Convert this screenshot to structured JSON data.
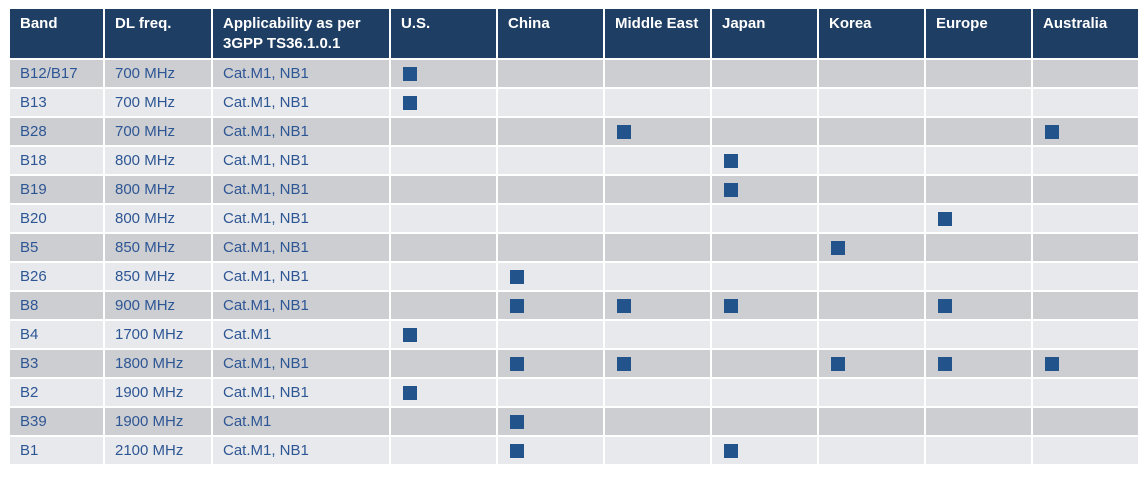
{
  "table": {
    "columns": [
      {
        "key": "band",
        "label": "Band"
      },
      {
        "key": "dl_freq",
        "label": "DL freq."
      },
      {
        "key": "applicability",
        "label": "Applicability as per 3GPP TS36.1.0.1"
      },
      {
        "key": "us",
        "label": "U.S."
      },
      {
        "key": "china",
        "label": "China"
      },
      {
        "key": "middle_east",
        "label": "Middle East"
      },
      {
        "key": "japan",
        "label": "Japan"
      },
      {
        "key": "korea",
        "label": "Korea"
      },
      {
        "key": "europe",
        "label": "Europe"
      },
      {
        "key": "australia",
        "label": "Australia"
      }
    ],
    "region_keys": [
      "us",
      "china",
      "middle_east",
      "japan",
      "korea",
      "europe",
      "australia"
    ],
    "rows": [
      {
        "band": "B12/B17",
        "dl_freq": "700 MHz",
        "applicability": "Cat.M1, NB1",
        "regions": [
          "us"
        ]
      },
      {
        "band": "B13",
        "dl_freq": "700 MHz",
        "applicability": "Cat.M1, NB1",
        "regions": [
          "us"
        ]
      },
      {
        "band": "B28",
        "dl_freq": "700 MHz",
        "applicability": "Cat.M1, NB1",
        "regions": [
          "middle_east",
          "australia"
        ]
      },
      {
        "band": "B18",
        "dl_freq": "800 MHz",
        "applicability": "Cat.M1, NB1",
        "regions": [
          "japan"
        ]
      },
      {
        "band": "B19",
        "dl_freq": "800 MHz",
        "applicability": "Cat.M1, NB1",
        "regions": [
          "japan"
        ]
      },
      {
        "band": "B20",
        "dl_freq": "800 MHz",
        "applicability": "Cat.M1, NB1",
        "regions": [
          "europe"
        ]
      },
      {
        "band": "B5",
        "dl_freq": "850 MHz",
        "applicability": "Cat.M1, NB1",
        "regions": [
          "korea"
        ]
      },
      {
        "band": "B26",
        "dl_freq": "850 MHz",
        "applicability": "Cat.M1, NB1",
        "regions": [
          "china"
        ]
      },
      {
        "band": "B8",
        "dl_freq": "900 MHz",
        "applicability": "Cat.M1, NB1",
        "regions": [
          "china",
          "middle_east",
          "japan",
          "europe"
        ]
      },
      {
        "band": "B4",
        "dl_freq": "1700 MHz",
        "applicability": "Cat.M1",
        "regions": [
          "us"
        ]
      },
      {
        "band": "B3",
        "dl_freq": "1800 MHz",
        "applicability": "Cat.M1, NB1",
        "regions": [
          "china",
          "middle_east",
          "korea",
          "europe",
          "australia"
        ]
      },
      {
        "band": "B2",
        "dl_freq": "1900 MHz",
        "applicability": "Cat.M1, NB1",
        "regions": [
          "us"
        ]
      },
      {
        "band": "B39",
        "dl_freq": "1900 MHz",
        "applicability": "Cat.M1",
        "regions": [
          "china"
        ]
      },
      {
        "band": "B1",
        "dl_freq": "2100 MHz",
        "applicability": "Cat.M1, NB1",
        "regions": [
          "china",
          "japan"
        ]
      }
    ]
  },
  "colors": {
    "header_bg": "#1f3e63",
    "header_text": "#ffffff",
    "row_dark": "#cdced2",
    "row_light": "#e8e9ec",
    "body_text": "#2d5694",
    "marker": "#22538a",
    "grid": "#ffffff"
  }
}
